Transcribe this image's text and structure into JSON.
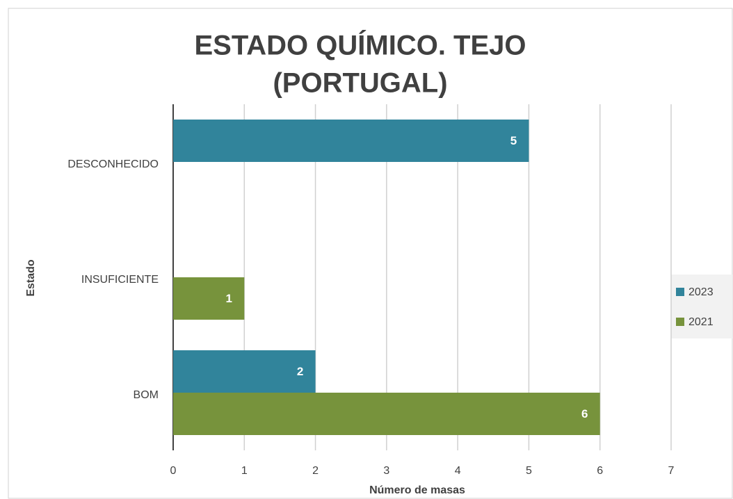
{
  "chart_data": {
    "type": "hbar",
    "title": "ESTADO QUÍMICO. TEJO",
    "subtitle": "(PORTUGAL)",
    "x_label": "Número de masas",
    "y_label": "Estado",
    "categories": [
      "DESCONHECIDO",
      "INSUFICIENTE",
      "BOM"
    ],
    "series": [
      {
        "name": "2023",
        "color": "#31849b",
        "values": [
          5,
          null,
          2
        ]
      },
      {
        "name": "2021",
        "color": "#77933c",
        "values": [
          null,
          1,
          6
        ]
      }
    ],
    "xlim": [
      0,
      7
    ],
    "xticks": [
      0,
      1,
      2,
      3,
      4,
      5,
      6,
      7
    ],
    "grid": true,
    "legend": "right"
  }
}
